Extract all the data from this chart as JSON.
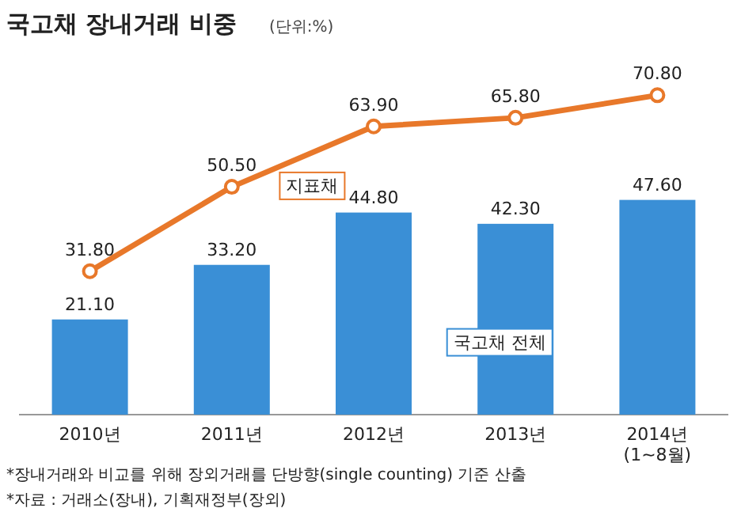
{
  "chart_data": {
    "type": "bar",
    "title": "국고채 장내거래 비중",
    "subtitle": "(단위:%)",
    "categories": [
      "2010년",
      "2011년",
      "2012년",
      "2013년",
      "2014년\n(1~8월)"
    ],
    "series": [
      {
        "name": "국고채 전체",
        "color": "#3a8fd6",
        "values": [
          21.1,
          33.2,
          44.8,
          42.3,
          47.6
        ],
        "value_labels": [
          "21.10",
          "33.20",
          "44.80",
          "42.30",
          "47.60"
        ]
      },
      {
        "name": "지표채",
        "type": "line",
        "color": "#e8782a",
        "marker": "circle",
        "values": [
          31.8,
          50.5,
          63.9,
          65.8,
          70.8
        ],
        "value_labels": [
          "31.80",
          "50.50",
          "63.90",
          "65.80",
          "70.80"
        ]
      }
    ],
    "tick_labels": "x",
    "annotations": [
      "*장내거래와 비교를 위해 장외거래를 단방향(single counting) 기준 산출",
      "*자료 : 거래소(장내), 기획재정부(장외)"
    ]
  }
}
